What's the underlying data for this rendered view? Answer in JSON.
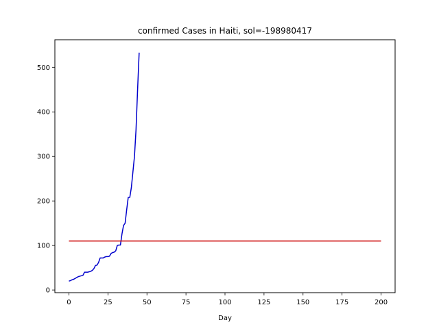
{
  "chart_data": {
    "type": "line",
    "title": "confirmed Cases in Haiti, sol=-198980417",
    "xlabel": "Day",
    "ylabel": "",
    "xlim": [
      -9,
      209
    ],
    "ylim": [
      -6,
      562
    ],
    "xticks": [
      0,
      25,
      50,
      75,
      100,
      125,
      150,
      175,
      200
    ],
    "yticks": [
      0,
      100,
      200,
      300,
      400,
      500
    ],
    "grid": false,
    "series": [
      {
        "color": "#0000cc",
        "x": [
          0,
          1,
          2,
          3,
          4,
          5,
          6,
          7,
          8,
          9,
          10,
          11,
          12,
          13,
          14,
          15,
          16,
          17,
          18,
          19,
          20,
          21,
          22,
          23,
          24,
          25,
          26,
          27,
          28,
          29,
          30,
          31,
          32,
          33,
          34,
          35,
          36,
          37,
          38,
          39,
          40,
          41,
          42,
          43,
          44,
          45
        ],
        "y": [
          20,
          21,
          23,
          24,
          26,
          28,
          30,
          31,
          32,
          33,
          40,
          40,
          40,
          41,
          42,
          44,
          48,
          55,
          56,
          62,
          72,
          72,
          72,
          74,
          75,
          75,
          76,
          82,
          84,
          85,
          88,
          100,
          101,
          101,
          126,
          145,
          150,
          180,
          208,
          208,
          230,
          265,
          300,
          360,
          450,
          533
        ]
      },
      {
        "color": "#cc0000",
        "x": [
          0,
          200
        ],
        "y": [
          110,
          110
        ]
      }
    ]
  }
}
